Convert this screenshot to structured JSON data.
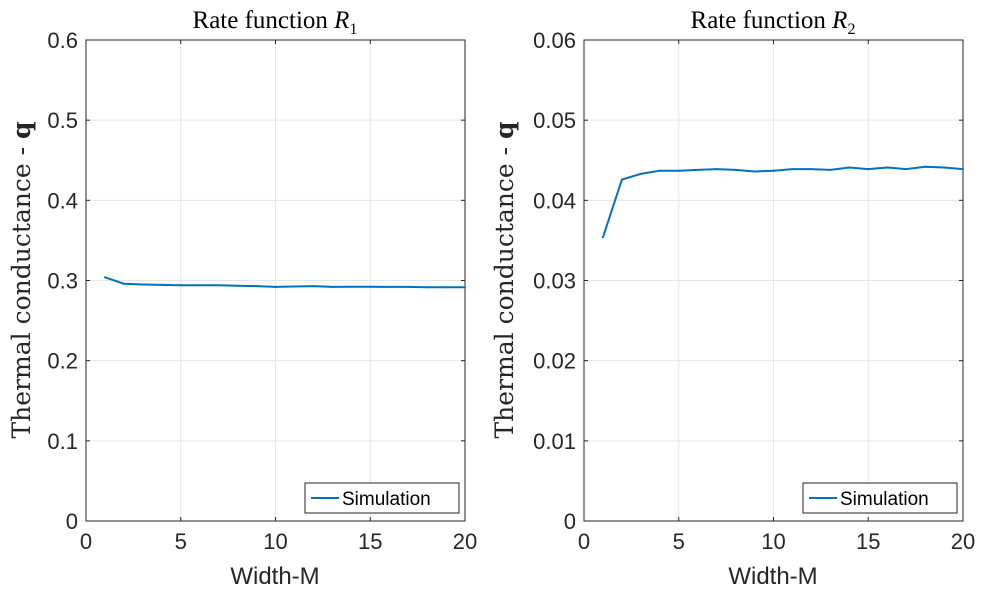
{
  "chart_data": [
    {
      "type": "line",
      "title": "Rate function R",
      "title_subscript": "1",
      "xlabel": "Width-M",
      "ylabel": "Thermal conductance - ",
      "ylabel_bold": "q",
      "xlim": [
        0,
        20
      ],
      "ylim": [
        0,
        0.6
      ],
      "xticks": [
        0,
        5,
        10,
        15,
        20
      ],
      "xtick_labels": [
        "0",
        "5",
        "10",
        "15",
        "20"
      ],
      "yticks": [
        0,
        0.1,
        0.2,
        0.3,
        0.4,
        0.5,
        0.6
      ],
      "ytick_labels": [
        "0",
        "0.1",
        "0.2",
        "0.3",
        "0.4",
        "0.5",
        "0.6"
      ],
      "grid": true,
      "legend_position": "bottom-right",
      "series": [
        {
          "name": "Simulation",
          "color": "#0072BD",
          "x": [
            1,
            2,
            3,
            4,
            5,
            6,
            7,
            8,
            9,
            10,
            11,
            12,
            13,
            14,
            15,
            16,
            17,
            18,
            19,
            20
          ],
          "y": [
            0.304,
            0.296,
            0.295,
            0.2945,
            0.294,
            0.294,
            0.294,
            0.2935,
            0.293,
            0.292,
            0.2925,
            0.293,
            0.292,
            0.2922,
            0.2922,
            0.292,
            0.292,
            0.2915,
            0.2915,
            0.2915
          ]
        }
      ]
    },
    {
      "type": "line",
      "title": "Rate function R",
      "title_subscript": "2",
      "xlabel": "Width-M",
      "ylabel": "Thermal conductance - ",
      "ylabel_bold": "q",
      "xlim": [
        0,
        20
      ],
      "ylim": [
        0,
        0.06
      ],
      "xticks": [
        0,
        5,
        10,
        15,
        20
      ],
      "xtick_labels": [
        "0",
        "5",
        "10",
        "15",
        "20"
      ],
      "yticks": [
        0,
        0.01,
        0.02,
        0.03,
        0.04,
        0.05,
        0.06
      ],
      "ytick_labels": [
        "0",
        "0.01",
        "0.02",
        "0.03",
        "0.04",
        "0.05",
        "0.06"
      ],
      "grid": true,
      "legend_position": "bottom-right",
      "series": [
        {
          "name": "Simulation",
          "color": "#0072BD",
          "x": [
            1,
            2,
            3,
            4,
            5,
            6,
            7,
            8,
            9,
            10,
            11,
            12,
            13,
            14,
            15,
            16,
            17,
            18,
            19,
            20
          ],
          "y": [
            0.0354,
            0.0426,
            0.0433,
            0.0437,
            0.0437,
            0.0438,
            0.0439,
            0.0438,
            0.0436,
            0.0437,
            0.0439,
            0.0439,
            0.0438,
            0.0441,
            0.0439,
            0.0441,
            0.0439,
            0.0442,
            0.0441,
            0.0439
          ]
        }
      ]
    }
  ]
}
